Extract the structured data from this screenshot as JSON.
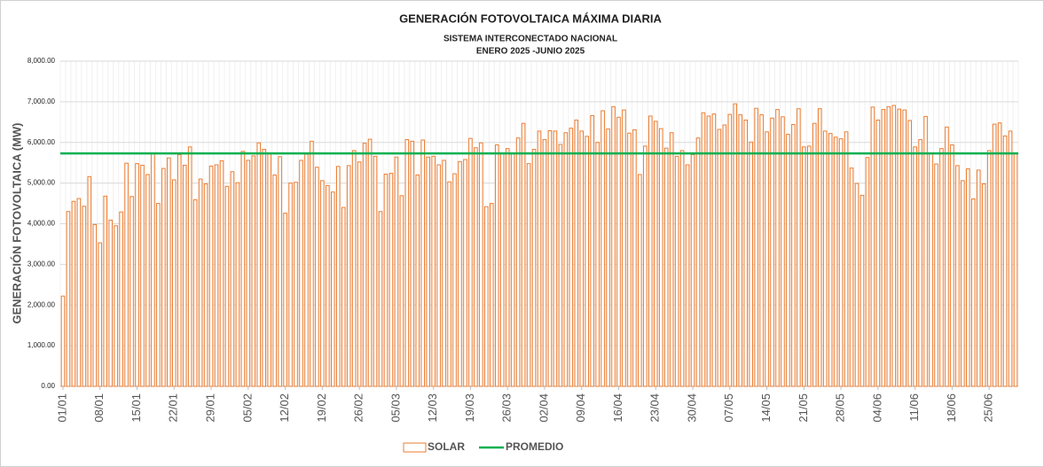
{
  "chart_data": {
    "type": "bar",
    "title": "GENERACIÓN FOTOVOLTAICA MÁXIMA DIARIA",
    "subtitle": [
      "SISTEMA INTERCONECTADO NACIONAL",
      "ENERO 2025 -JUNIO 2025"
    ],
    "y_label": "GENERACIÓN FOTOVOLTAICA (MW)",
    "categories": [
      "01/01",
      null,
      null,
      null,
      null,
      null,
      null,
      "08/01",
      null,
      null,
      null,
      null,
      null,
      null,
      "15/01",
      null,
      null,
      null,
      null,
      null,
      null,
      "22/01",
      null,
      null,
      null,
      null,
      null,
      null,
      "29/01",
      null,
      null,
      null,
      null,
      null,
      null,
      "05/02",
      null,
      null,
      null,
      null,
      null,
      null,
      "12/02",
      null,
      null,
      null,
      null,
      null,
      null,
      "19/02",
      null,
      null,
      null,
      null,
      null,
      null,
      "26/02",
      null,
      null,
      null,
      null,
      null,
      null,
      "05/03",
      null,
      null,
      null,
      null,
      null,
      null,
      "12/03",
      null,
      null,
      null,
      null,
      null,
      null,
      "19/03",
      null,
      null,
      null,
      null,
      null,
      null,
      "26/03",
      null,
      null,
      null,
      null,
      null,
      null,
      "02/04",
      null,
      null,
      null,
      null,
      null,
      null,
      "09/04",
      null,
      null,
      null,
      null,
      null,
      null,
      "16/04",
      null,
      null,
      null,
      null,
      null,
      null,
      "23/04",
      null,
      null,
      null,
      null,
      null,
      null,
      "30/04",
      null,
      null,
      null,
      null,
      null,
      null,
      "07/05",
      null,
      null,
      null,
      null,
      null,
      null,
      "14/05",
      null,
      null,
      null,
      null,
      null,
      null,
      "21/05",
      null,
      null,
      null,
      null,
      null,
      null,
      "28/05",
      null,
      null,
      null,
      null,
      null,
      null,
      "04/06",
      null,
      null,
      null,
      null,
      null,
      null,
      "11/06",
      null,
      null,
      null,
      null,
      null,
      null,
      "18/06",
      null,
      null,
      null,
      null,
      null,
      null,
      "25/06",
      null,
      null,
      null,
      null,
      null
    ],
    "series": [
      {
        "name": "SOLAR",
        "color": "#ED7D31",
        "values": [
          2220,
          4300,
          4550,
          4620,
          4430,
          5160,
          3980,
          3530,
          4680,
          4090,
          3950,
          4290,
          5490,
          4670,
          5480,
          5440,
          5210,
          5720,
          4500,
          5360,
          5620,
          5080,
          5700,
          5440,
          5890,
          4590,
          5100,
          4980,
          5420,
          5450,
          5550,
          4920,
          5280,
          5010,
          5780,
          5560,
          5670,
          5990,
          5830,
          5720,
          5200,
          5650,
          4260,
          5000,
          5020,
          5560,
          5710,
          6030,
          5390,
          5060,
          4940,
          4780,
          5410,
          4400,
          5430,
          5800,
          5520,
          5980,
          6080,
          5660,
          4300,
          5220,
          5240,
          5640,
          4690,
          6070,
          6030,
          5200,
          6060,
          5640,
          5660,
          5450,
          5560,
          5030,
          5230,
          5530,
          5580,
          6100,
          5870,
          5990,
          4420,
          4500,
          5940,
          5730,
          5850,
          5720,
          6110,
          6470,
          5480,
          5830,
          6280,
          6070,
          6290,
          6280,
          5950,
          6240,
          6350,
          6550,
          6280,
          6150,
          6660,
          6000,
          6780,
          6330,
          6880,
          6620,
          6800,
          6230,
          6310,
          5210,
          5910,
          6650,
          6520,
          6340,
          5860,
          6240,
          5660,
          5800,
          5450,
          5700,
          6110,
          6730,
          6650,
          6700,
          6320,
          6430,
          6690,
          6950,
          6680,
          6550,
          6010,
          6840,
          6680,
          6260,
          6600,
          6810,
          6630,
          6200,
          6440,
          6830,
          5890,
          5910,
          6470,
          6830,
          6280,
          6220,
          6130,
          6090,
          6260,
          5370,
          4990,
          4700,
          5630,
          6870,
          6550,
          6810,
          6880,
          6910,
          6820,
          6800,
          6540,
          5890,
          6070,
          6640,
          5730,
          5470,
          5850,
          6380,
          5940,
          5430,
          5060,
          5350,
          4610,
          5320,
          4980,
          5800,
          6450,
          6480,
          6160,
          6280,
          5720
        ]
      },
      {
        "name": "PROMEDIO",
        "color": "#00B050",
        "value": 5730
      }
    ],
    "ylim": [
      0,
      8000
    ],
    "yticks": [
      {
        "value": 0,
        "label": "0.00"
      },
      {
        "value": 1000,
        "label": "1,000.00"
      },
      {
        "value": 2000,
        "label": "2,000.00"
      },
      {
        "value": 3000,
        "label": "3,000.00"
      },
      {
        "value": 4000,
        "label": "4,000.00"
      },
      {
        "value": 5000,
        "label": "5,000.00"
      },
      {
        "value": 6000,
        "label": "6,000.00"
      },
      {
        "value": 7000,
        "label": "7,000.00"
      },
      {
        "value": 8000,
        "label": "8,000.00"
      }
    ],
    "grid": true,
    "legend": "bottom"
  }
}
